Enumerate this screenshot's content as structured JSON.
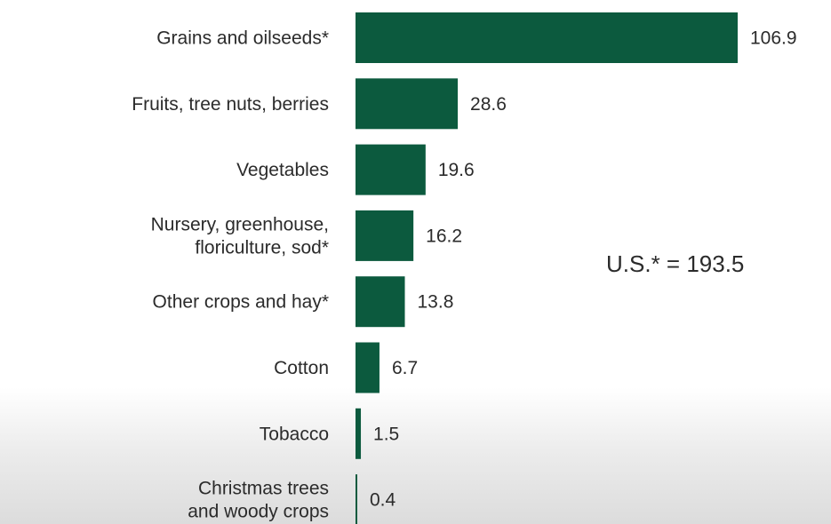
{
  "chart_data": {
    "type": "bar",
    "orientation": "horizontal",
    "categories": [
      "Grains and oilseeds*",
      "Fruits, tree nuts, berries",
      "Vegetables",
      "Nursery, greenhouse,\nfloriculture, sod*",
      "Other crops and hay*",
      "Cotton",
      "Tobacco",
      "Christmas trees\nand woody crops"
    ],
    "values": [
      106.9,
      28.6,
      19.6,
      16.2,
      13.8,
      6.7,
      1.5,
      0.4
    ],
    "value_labels": [
      "106.9",
      "28.6",
      "19.6",
      "16.2",
      "13.8",
      "6.7",
      "1.5",
      "0.4"
    ],
    "bar_color": "#0c5a3e",
    "title": "",
    "xlabel": "",
    "ylabel": "",
    "xlim": [
      0,
      106.9
    ],
    "grid": false,
    "annotation": "U.S.* = 193.5"
  }
}
